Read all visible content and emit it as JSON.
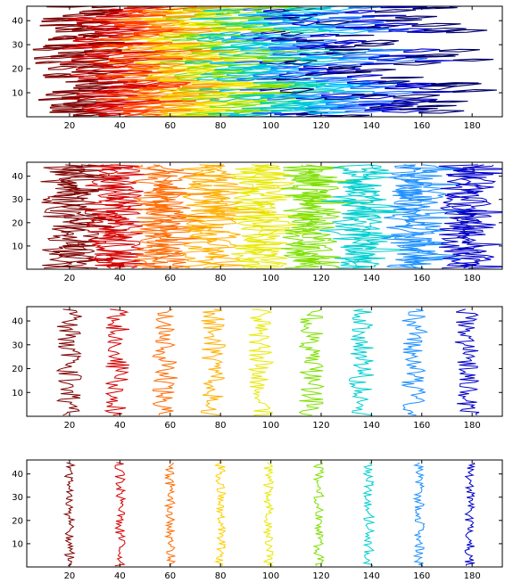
{
  "chart_data": [
    {
      "type": "contour",
      "panel": 1,
      "xlim": [
        3,
        192
      ],
      "ylim": [
        0,
        46
      ],
      "x_ticks": [
        20,
        40,
        60,
        80,
        100,
        120,
        140,
        160,
        180
      ],
      "y_ticks": [
        10,
        20,
        30,
        40
      ],
      "x_tick_labels": [
        "20",
        "40",
        "60",
        "80",
        "100",
        "120",
        "140",
        "160",
        "180"
      ],
      "y_tick_labels": [
        "10",
        "20",
        "30",
        "40"
      ],
      "level_colors": [
        "#7f0000",
        "#d40000",
        "#ff4000",
        "#ff9a00",
        "#f2e600",
        "#8ce000",
        "#00d2b0",
        "#00bfff",
        "#1e6fff",
        "#0000d0",
        "#00006a"
      ],
      "level_count": 11,
      "description_band": "dense horizontal streaks spanning x 5 to 190",
      "grid": false
    },
    {
      "type": "contour",
      "panel": 2,
      "xlim": [
        3,
        192
      ],
      "ylim": [
        0,
        46
      ],
      "x_ticks": [
        20,
        40,
        60,
        80,
        100,
        120,
        140,
        160,
        180
      ],
      "y_ticks": [
        10,
        20,
        30,
        40
      ],
      "x_tick_labels": [
        "20",
        "40",
        "60",
        "80",
        "100",
        "120",
        "140",
        "160",
        "180"
      ],
      "y_tick_labels": [
        "10",
        "20",
        "30",
        "40"
      ],
      "level_x_centers": [
        20,
        38,
        57,
        76,
        96,
        116,
        136,
        157,
        178
      ],
      "level_jitter": 8,
      "level_colors": [
        "#7f0000",
        "#d40000",
        "#ff6a00",
        "#ffb000",
        "#e8e800",
        "#7de000",
        "#00cfd0",
        "#1e90ff",
        "#0000c8"
      ],
      "grid": false
    },
    {
      "type": "contour",
      "panel": 3,
      "xlim": [
        3,
        192
      ],
      "ylim": [
        0,
        46
      ],
      "x_ticks": [
        20,
        40,
        60,
        80,
        100,
        120,
        140,
        160,
        180
      ],
      "y_ticks": [
        10,
        20,
        30,
        40
      ],
      "x_tick_labels": [
        "20",
        "40",
        "60",
        "80",
        "100",
        "120",
        "140",
        "160",
        "180"
      ],
      "y_tick_labels": [
        "10",
        "20",
        "30",
        "40"
      ],
      "level_x_centers": [
        20,
        39,
        58,
        77,
        96,
        116,
        136,
        157,
        178
      ],
      "level_jitter": 5,
      "level_colors": [
        "#7f0000",
        "#d40000",
        "#ff6a00",
        "#ffb000",
        "#e8e800",
        "#7de000",
        "#00cfd0",
        "#1e90ff",
        "#0000c8"
      ],
      "grid": false
    },
    {
      "type": "contour",
      "panel": 4,
      "xlim": [
        3,
        192
      ],
      "ylim": [
        0,
        46
      ],
      "x_ticks": [
        20,
        40,
        60,
        80,
        100,
        120,
        140,
        160,
        180
      ],
      "y_ticks": [
        10,
        20,
        30,
        40
      ],
      "x_tick_labels": [
        "20",
        "40",
        "60",
        "80",
        "100",
        "120",
        "140",
        "160",
        "180"
      ],
      "y_tick_labels": [
        "10",
        "20",
        "30",
        "40"
      ],
      "level_x_centers": [
        20,
        40,
        60,
        80,
        99,
        119,
        139,
        159,
        179
      ],
      "level_jitter": 2,
      "level_colors": [
        "#7f0000",
        "#d40000",
        "#ff6a00",
        "#ffd000",
        "#e8e800",
        "#7de000",
        "#00cfd0",
        "#1e90ff",
        "#0000c8"
      ],
      "grid": false
    }
  ]
}
